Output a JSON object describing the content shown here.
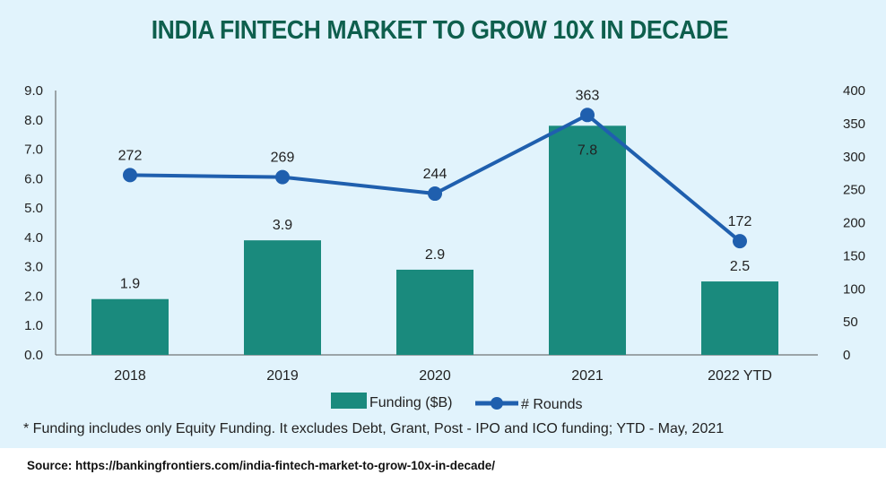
{
  "chart_data": {
    "type": "bar+line",
    "title": "INDIA FINTECH MARKET TO GROW 10X IN DECADE",
    "categories": [
      "2018",
      "2019",
      "2020",
      "2021",
      "2022 YTD"
    ],
    "series": [
      {
        "name": "Funding ($B)",
        "type": "bar",
        "axis": "left",
        "values": [
          1.9,
          3.9,
          2.9,
          7.8,
          2.5
        ],
        "labels": [
          "1.9",
          "3.9",
          "2.9",
          "7.8",
          "2.5"
        ]
      },
      {
        "name": "# Rounds",
        "type": "line",
        "axis": "right",
        "values": [
          272,
          269,
          244,
          363,
          172
        ],
        "labels": [
          "272",
          "269",
          "244",
          "363",
          "172"
        ]
      }
    ],
    "left_axis": {
      "ylim": [
        0,
        9
      ],
      "ticks": [
        "0.0",
        "1.0",
        "2.0",
        "3.0",
        "4.0",
        "5.0",
        "6.0",
        "7.0",
        "8.0",
        "9.0"
      ]
    },
    "right_axis": {
      "ylim": [
        0,
        400
      ],
      "ticks": [
        "0",
        "50",
        "100",
        "150",
        "200",
        "250",
        "300",
        "350",
        "400"
      ]
    },
    "grid": false,
    "legend": "bottom",
    "colors": {
      "bar": "#1a8a7d",
      "line": "#1f5fae",
      "title": "#0e5f4d",
      "background": "#e1f3fc"
    }
  },
  "footnote": "* Funding includes only Equity Funding. It excludes Debt, Grant, Post - IPO and ICO funding; YTD - May, 2021",
  "source": "Source:  https://bankingfrontiers.com/india-fintech-market-to-grow-10x-in-decade/"
}
